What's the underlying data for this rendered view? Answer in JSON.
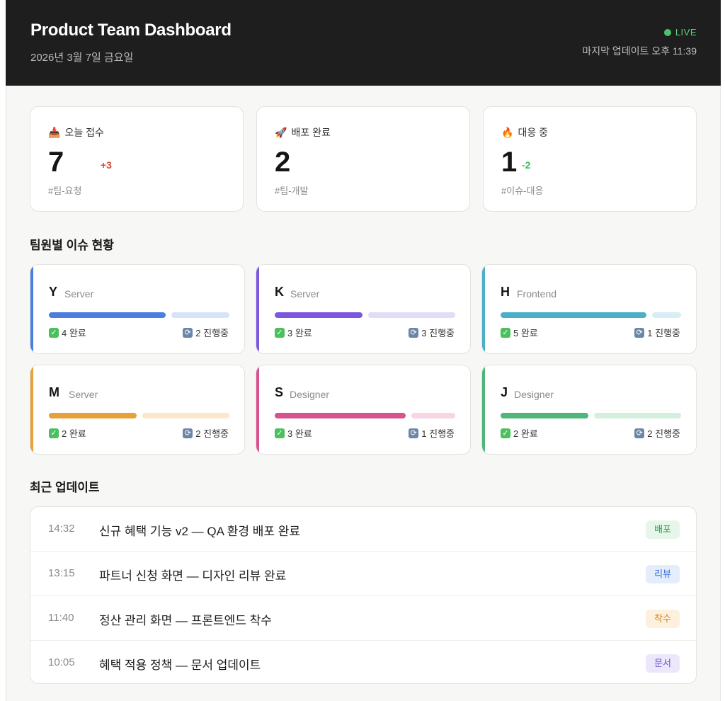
{
  "header": {
    "title": "Product Team Dashboard",
    "date": "2026년 3월 7일 금요일",
    "live_label": "LIVE",
    "last_updated": "마지막 업데이트 오후 11:39"
  },
  "stats": [
    {
      "icon": "inbox-tray-icon",
      "emoji": "📥",
      "label": "오늘 접수",
      "value": "7",
      "delta": "+3",
      "delta_color": "#e0453a",
      "tag": "#팀-요청"
    },
    {
      "icon": "rocket-icon",
      "emoji": "🚀",
      "label": "배포 완료",
      "value": "2",
      "delta": "",
      "delta_color": "",
      "tag": "#팀-개발"
    },
    {
      "icon": "fire-icon",
      "emoji": "🔥",
      "label": "대응 중",
      "value": "1",
      "delta": "-2",
      "delta_color": "#3dbb5a",
      "tag": "#이슈-대응"
    }
  ],
  "members_title": "팀원별 이슈 현황",
  "members": [
    {
      "initial": "Y",
      "role": "Server",
      "color": "#4a7fe0",
      "light": "#d6e3fb",
      "done": 4,
      "in_progress": 2,
      "done_label": "4 완료",
      "progress_label": "2 진행중"
    },
    {
      "initial": "K",
      "role": "Server",
      "color": "#7c58e0",
      "light": "#e3dcf9",
      "done": 3,
      "in_progress": 3,
      "done_label": "3 완료",
      "progress_label": "3 진행중"
    },
    {
      "initial": "H",
      "role": "Frontend",
      "color": "#4ab0c8",
      "light": "#d7eef4",
      "done": 5,
      "in_progress": 1,
      "done_label": "5 완료",
      "progress_label": "1 진행중"
    },
    {
      "initial": "M",
      "role": "Server",
      "color": "#e8a03a",
      "light": "#fbe7cb",
      "done": 2,
      "in_progress": 2,
      "done_label": "2 완료",
      "progress_label": "2 진행중"
    },
    {
      "initial": "S",
      "role": "Designer",
      "color": "#d8528f",
      "light": "#f7d5e5",
      "done": 3,
      "in_progress": 1,
      "done_label": "3 완료",
      "progress_label": "1 진행중"
    },
    {
      "initial": "J",
      "role": "Designer",
      "color": "#4fb57a",
      "light": "#d5efdf",
      "done": 2,
      "in_progress": 2,
      "done_label": "2 완료",
      "progress_label": "2 진행중"
    }
  ],
  "updates_title": "최근 업데이트",
  "updates": [
    {
      "time": "14:32",
      "text": "신규 혜택 기능 v2 — QA 환경 배포 완료",
      "badge": "배포",
      "badge_color": "#2f9a4a",
      "badge_bg": "#e6f6ea"
    },
    {
      "time": "13:15",
      "text": "파트너 신청 화면 — 디자인 리뷰 완료",
      "badge": "리뷰",
      "badge_color": "#3b6fd6",
      "badge_bg": "#e4edfc"
    },
    {
      "time": "11:40",
      "text": "정산 관리 화면 — 프론트엔드 착수",
      "badge": "착수",
      "badge_color": "#d98320",
      "badge_bg": "#fdf0dd"
    },
    {
      "time": "10:05",
      "text": "혜택 적용 정책 — 문서 업데이트",
      "badge": "문서",
      "badge_color": "#6a4fd0",
      "badge_bg": "#ece7fb"
    }
  ]
}
